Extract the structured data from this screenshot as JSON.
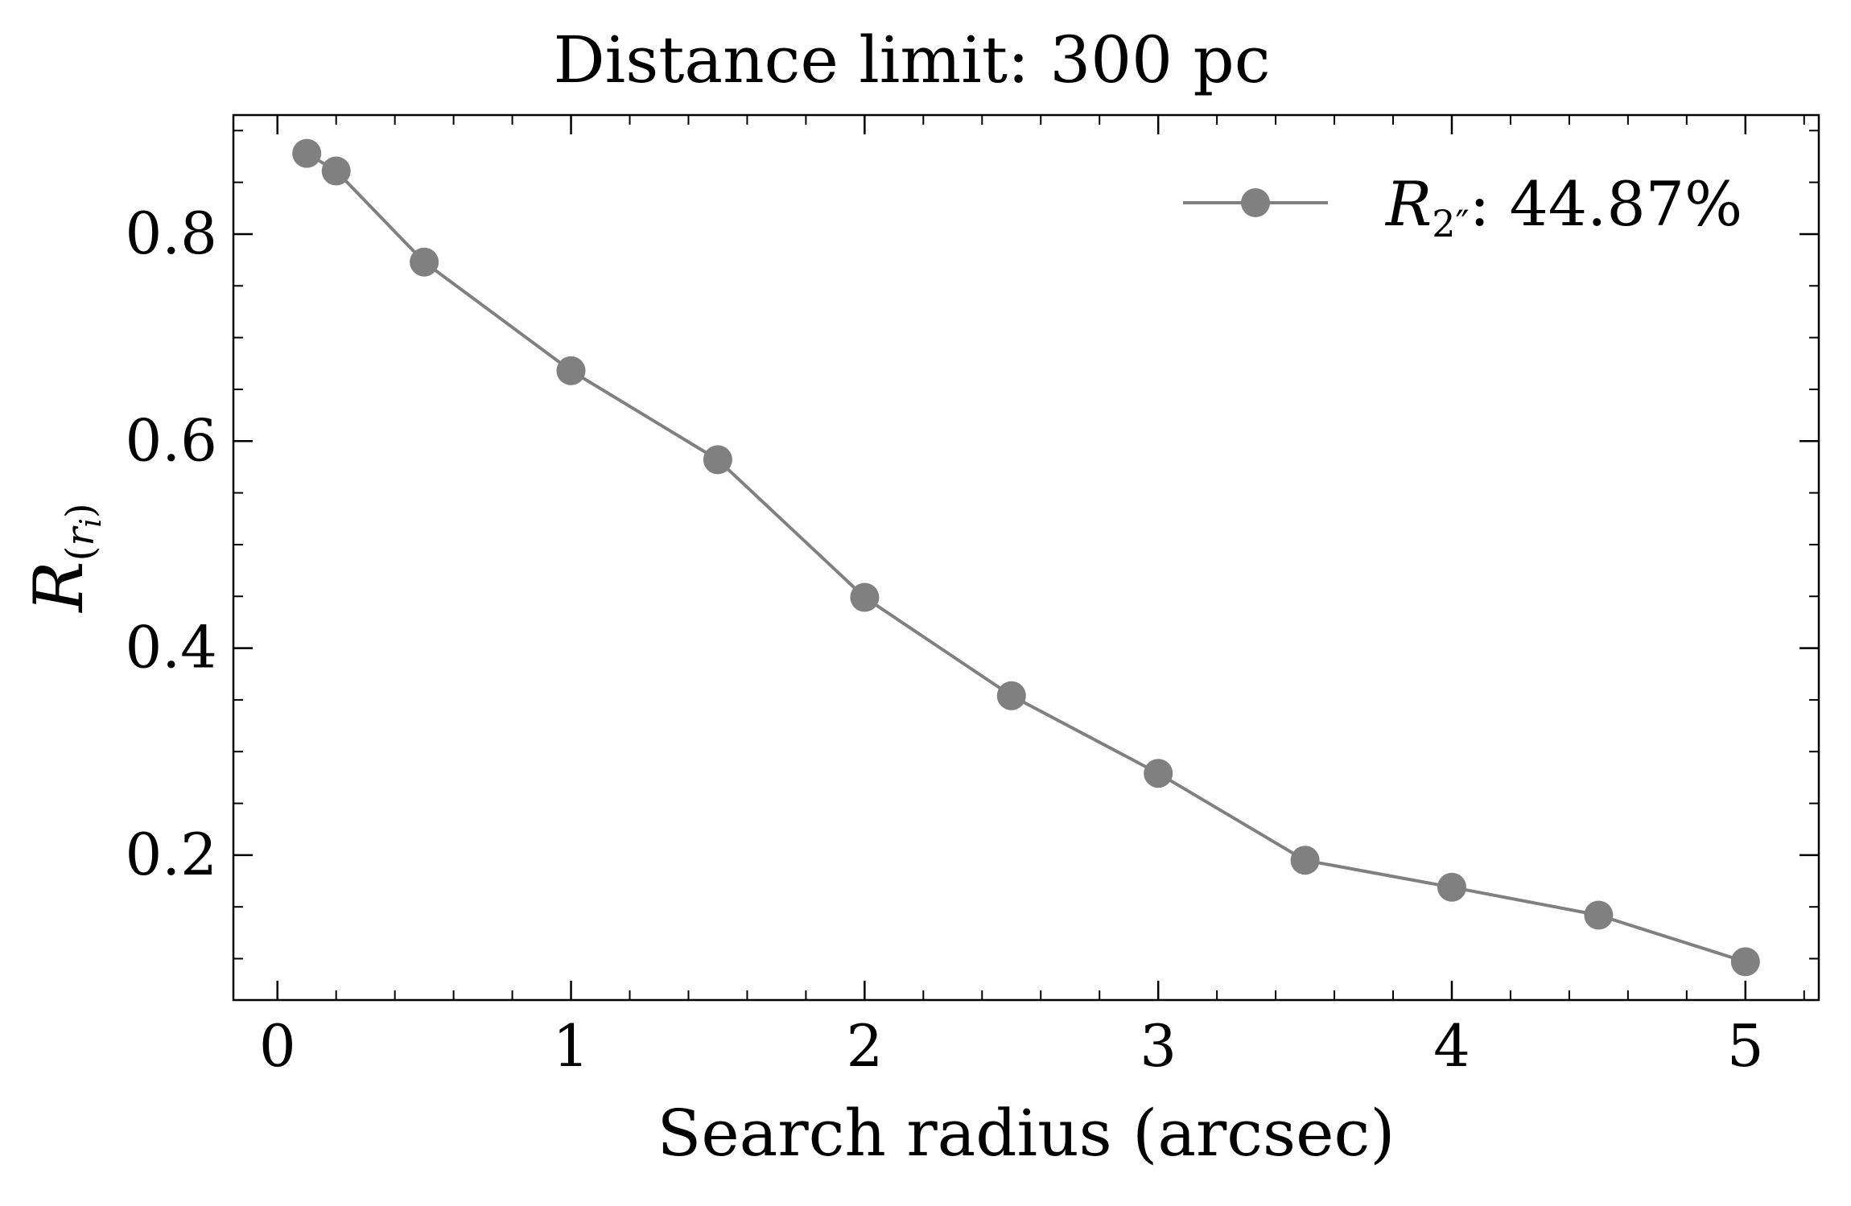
{
  "chart_data": {
    "type": "line",
    "title": "Distance limit: 300 pc",
    "xlabel": "Search radius (arcsec)",
    "ylabel": {
      "main": "R",
      "sub_open": "(",
      "sub_var": "r",
      "sub_index": "i",
      "sub_close": ")"
    },
    "xlim": [
      -0.15,
      5.25
    ],
    "ylim": [
      0.06,
      0.915
    ],
    "x_major_ticks": [
      0,
      1,
      2,
      3,
      4,
      5
    ],
    "x_tick_labels": [
      "0",
      "1",
      "2",
      "3",
      "4",
      "5"
    ],
    "x_minor_step": 0.2,
    "y_major_ticks": [
      0.2,
      0.4,
      0.6,
      0.8
    ],
    "y_tick_labels": [
      "0.2",
      "0.4",
      "0.6",
      "0.8"
    ],
    "y_minor_step": 0.05,
    "grid": false,
    "legend_position": "top-right",
    "series": [
      {
        "legend": {
          "var": "R",
          "sub": "2″",
          "text": ": 44.87%"
        },
        "color": "#808080",
        "x": [
          0.1,
          0.2,
          0.5,
          1.0,
          1.5,
          2.0,
          2.5,
          3.0,
          3.5,
          4.0,
          4.5,
          5.0
        ],
        "y": [
          0.878,
          0.861,
          0.773,
          0.668,
          0.582,
          0.449,
          0.354,
          0.279,
          0.195,
          0.169,
          0.142,
          0.097
        ]
      }
    ]
  }
}
